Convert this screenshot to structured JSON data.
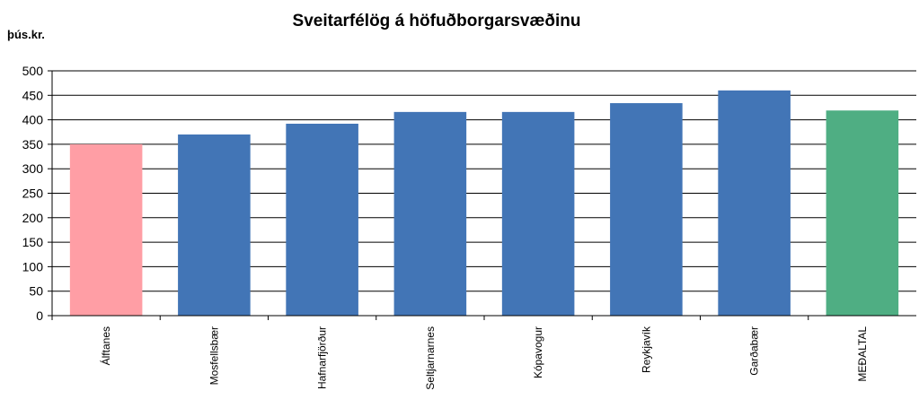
{
  "chart_data": {
    "type": "bar",
    "title": "Sveitarfélög á höfuðborgarsvæðinu",
    "y_label": "þús.kr.",
    "categories": [
      "Álftanes",
      "Mosfellsbær",
      "Hafnarfjörður",
      "Seltjarnarnes",
      "Kópavogur",
      "Reykjavík",
      "Garðabær",
      "MEÐALTAL"
    ],
    "values": [
      350,
      370,
      392,
      416,
      416,
      434,
      460,
      419
    ],
    "colors": [
      "#ff9ea5",
      "#4275b6",
      "#4275b6",
      "#4275b6",
      "#4275b6",
      "#4275b6",
      "#4275b6",
      "#4fae83"
    ],
    "ylim": [
      0,
      500
    ],
    "yticks": [
      0,
      50,
      100,
      150,
      200,
      250,
      300,
      350,
      400,
      450,
      500
    ],
    "grid": true
  }
}
